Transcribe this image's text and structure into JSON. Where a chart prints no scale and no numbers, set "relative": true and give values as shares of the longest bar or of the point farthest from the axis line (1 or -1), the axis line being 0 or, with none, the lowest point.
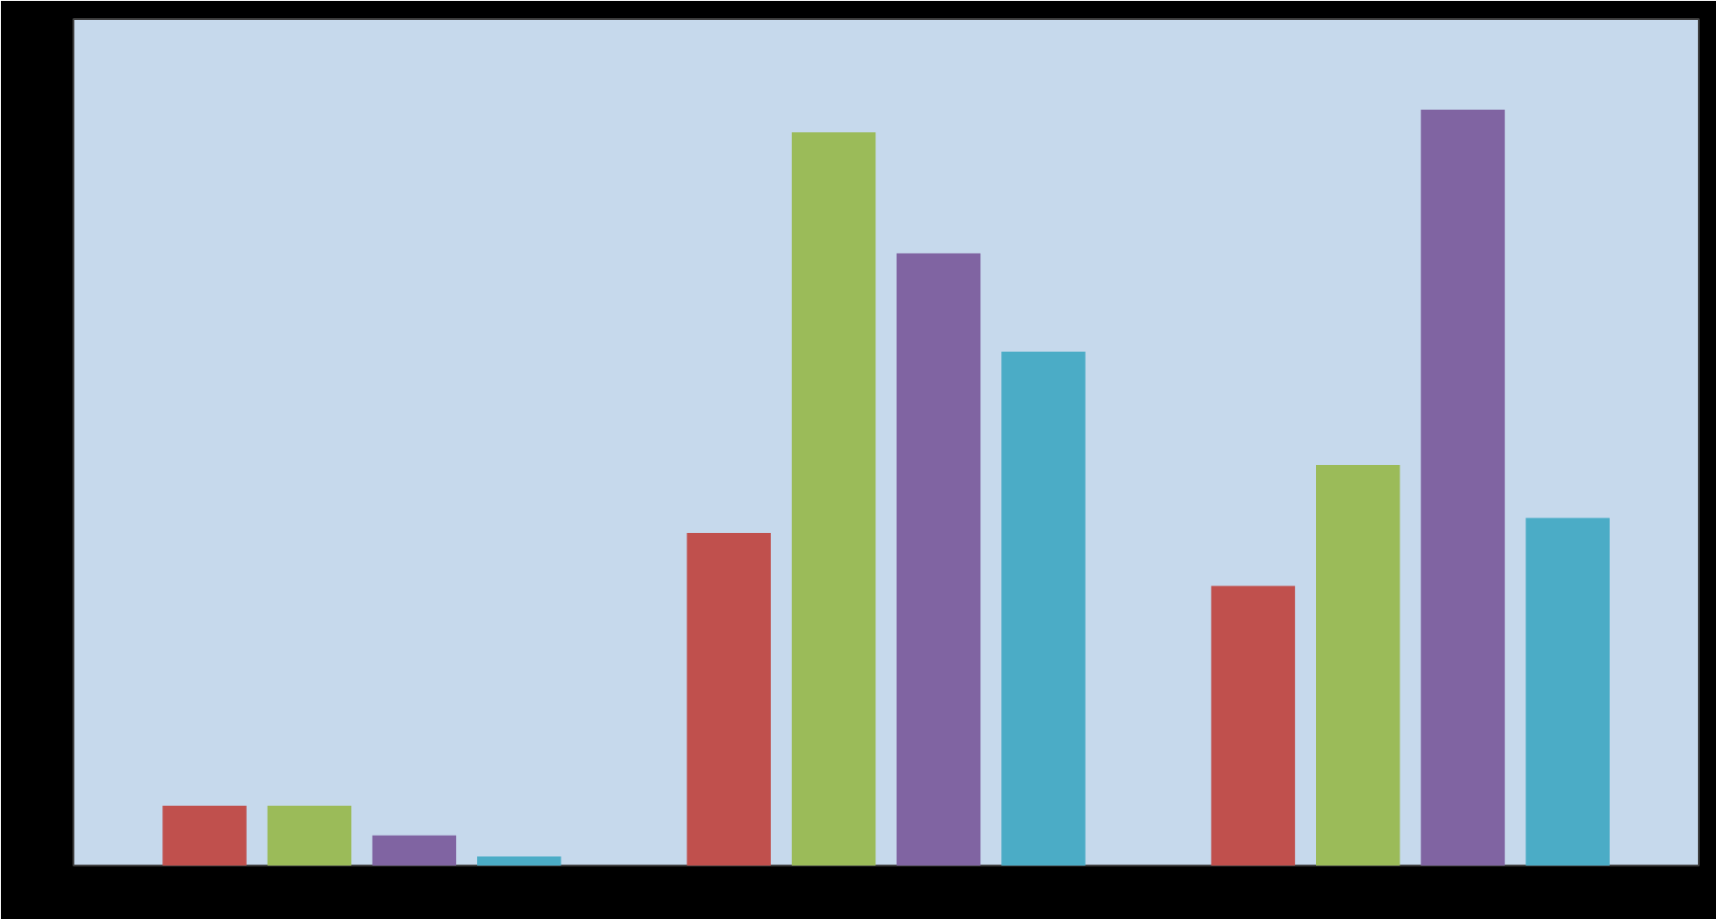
{
  "chart_data": {
    "type": "bar",
    "relative": true,
    "categories": [
      null,
      null,
      null
    ],
    "series": [
      {
        "color": "#c0504d",
        "values": [
          0.079,
          0.44,
          0.37
        ]
      },
      {
        "color": "#9bbb59",
        "values": [
          0.079,
          0.97,
          0.53
        ]
      },
      {
        "color": "#8064a2",
        "values": [
          0.04,
          0.81,
          1
        ]
      },
      {
        "color": "#4bacc6",
        "values": [
          0.012,
          0.68,
          0.46
        ]
      }
    ],
    "grid": false
  }
}
